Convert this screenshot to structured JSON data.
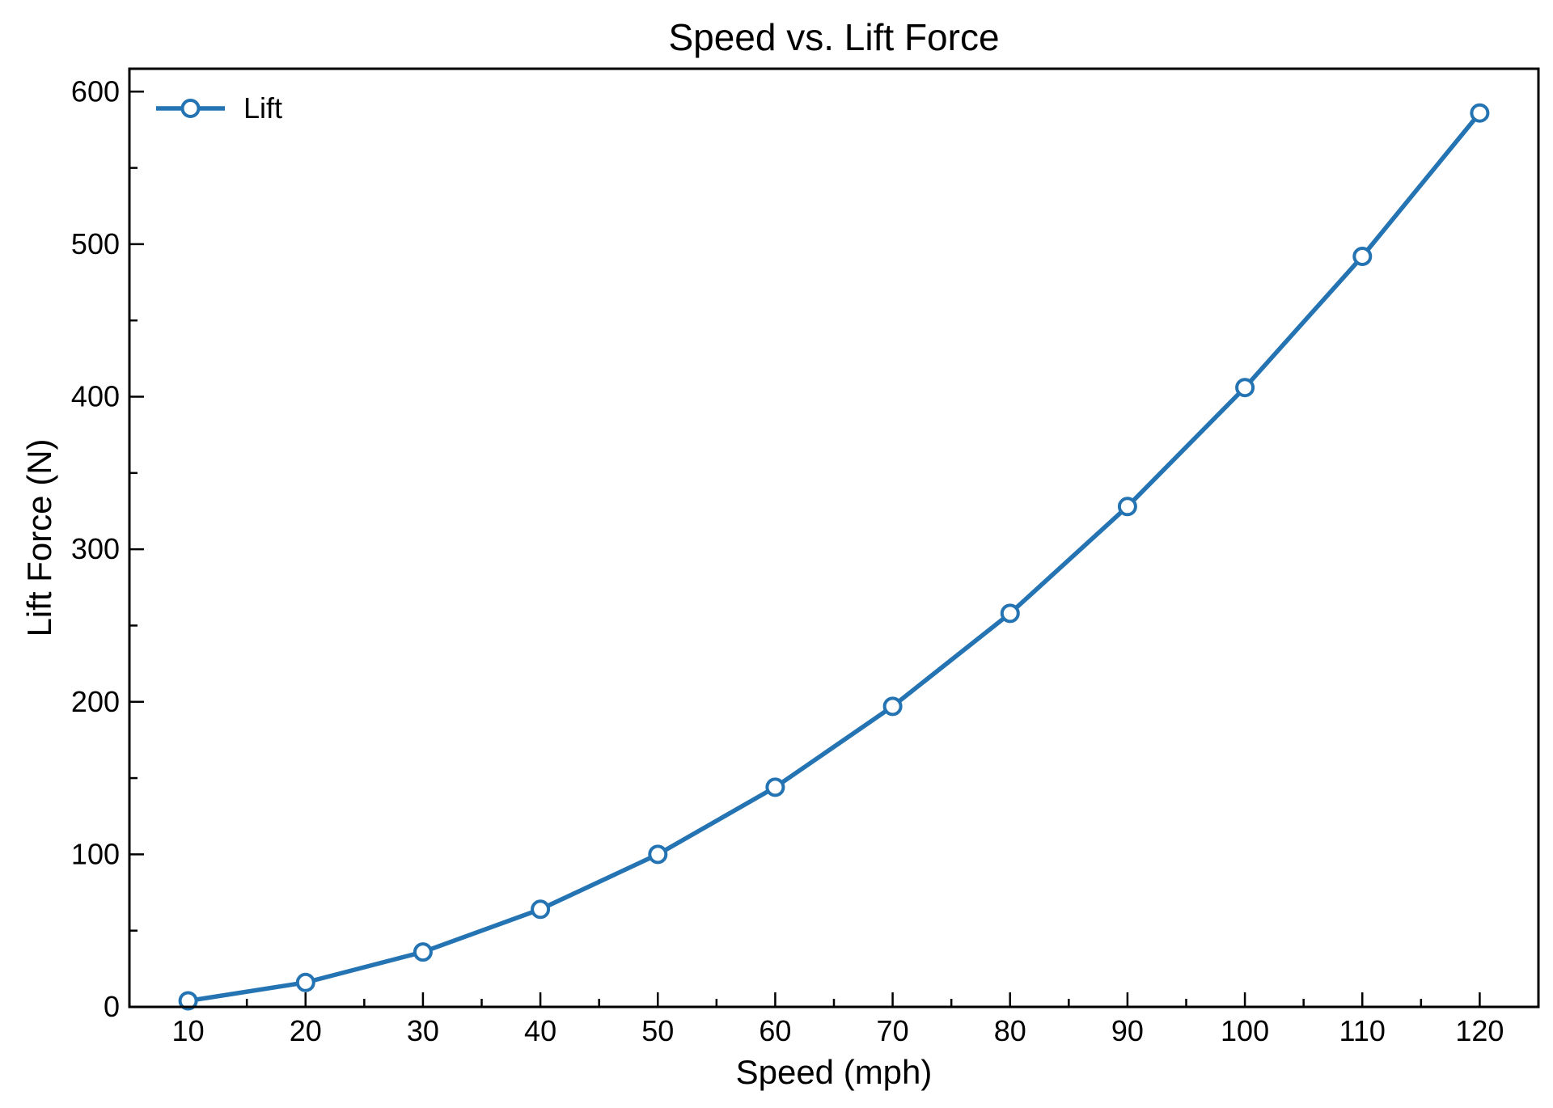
{
  "chart_data": {
    "type": "line",
    "title": "Speed vs. Lift Force",
    "xlabel": "Speed (mph)",
    "ylabel": "Lift Force (N)",
    "xlim": [
      5,
      125
    ],
    "ylim": [
      0,
      615
    ],
    "x_ticks": [
      10,
      20,
      30,
      40,
      50,
      60,
      70,
      80,
      90,
      100,
      110,
      120
    ],
    "y_ticks": [
      0,
      100,
      200,
      300,
      400,
      500,
      600
    ],
    "x_minor_step": 5,
    "y_minor_step": 50,
    "grid": false,
    "legend_position": "top-left",
    "x": [
      10,
      20,
      30,
      40,
      50,
      60,
      70,
      80,
      90,
      100,
      110,
      120
    ],
    "series": [
      {
        "name": "Lift",
        "color": "#2473b2",
        "marker": "circle-open",
        "values": [
          4,
          16,
          36,
          64,
          100,
          144,
          197,
          258,
          328,
          406,
          492,
          586
        ]
      }
    ]
  }
}
